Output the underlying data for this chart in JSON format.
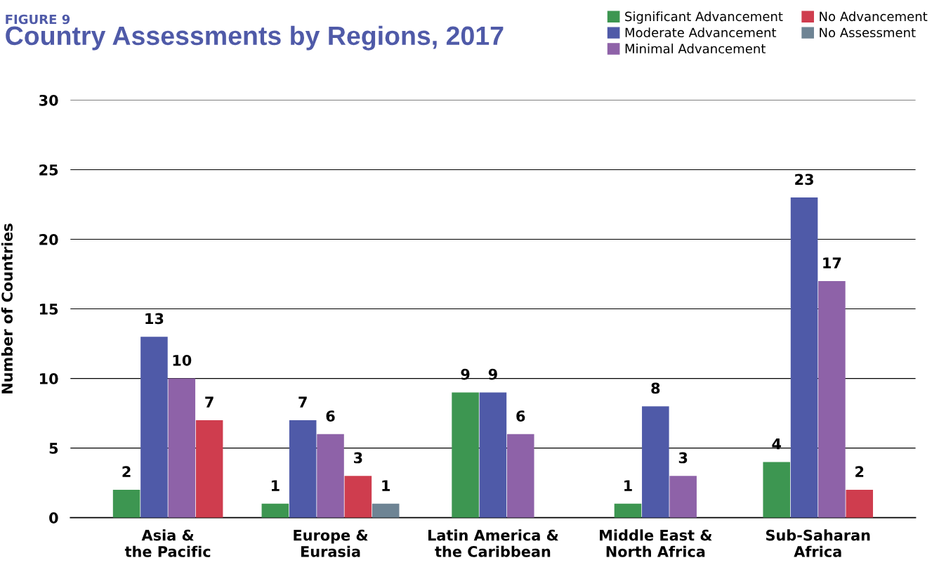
{
  "chart_data": {
    "type": "bar",
    "subtitle": "FIGURE 9",
    "title": "Country Assessments by Regions, 2017",
    "ylabel": "Number of Countries",
    "categories": [
      "Asia &\nthe Pacific",
      "Europe &\nEurasia",
      "Latin America &\nthe Caribbean",
      "Middle East &\nNorth Africa",
      "Sub-Saharan\nAfrica"
    ],
    "series": [
      {
        "name": "Significant Advancement",
        "color": "#3d9651",
        "values": [
          2,
          1,
          9,
          1,
          4
        ]
      },
      {
        "name": "Moderate Advancement",
        "color": "#4f5aa8",
        "values": [
          13,
          7,
          9,
          8,
          23
        ]
      },
      {
        "name": "Minimal Advancement",
        "color": "#8e62a8",
        "values": [
          10,
          6,
          6,
          3,
          17
        ]
      },
      {
        "name": "No Advancement",
        "color": "#cf3d4e",
        "values": [
          7,
          3,
          null,
          null,
          2
        ]
      },
      {
        "name": "No Assessment",
        "color": "#6e8494",
        "values": [
          null,
          1,
          null,
          null,
          null
        ]
      }
    ],
    "ylim": [
      0,
      30
    ],
    "yticks": [
      0,
      5,
      10,
      15,
      20,
      25,
      30
    ],
    "grid": "y",
    "legend": "top right",
    "data_labels": true
  }
}
